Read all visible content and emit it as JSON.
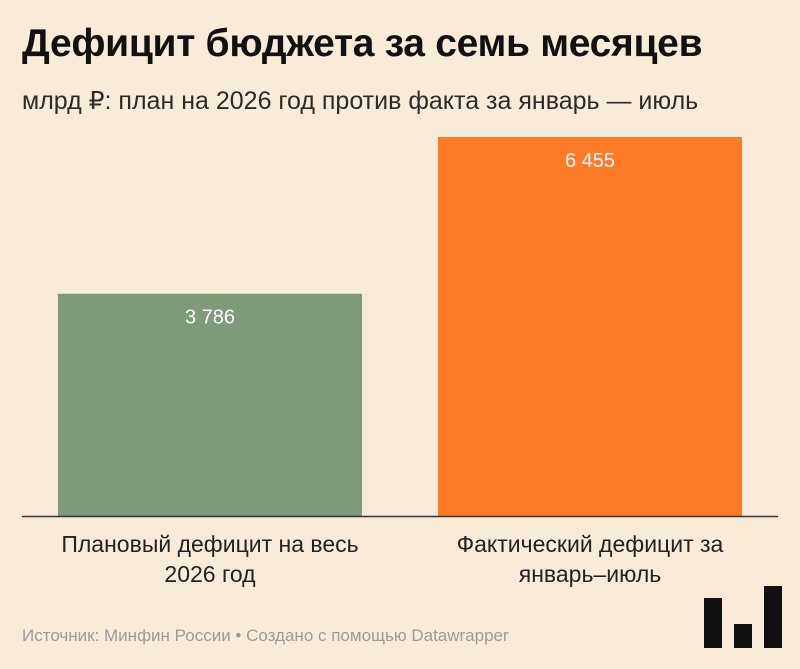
{
  "chart_data": {
    "type": "bar",
    "title": "Дефицит бюджета за семь месяцев",
    "subtitle": "млрд ₽: план на 2026 год против факта за январь — июль",
    "categories": [
      "Плановый дефицит на весь 2026 год",
      "Фактический дефицит за январь–июль"
    ],
    "category_lines": [
      [
        "Плановый дефицит на весь",
        "2026 год"
      ],
      [
        "Фактический дефицит за",
        "январь–июль"
      ]
    ],
    "values": [
      3786,
      6455
    ],
    "value_labels": [
      "3 786",
      "6 455"
    ],
    "colors": [
      "#7f9a79",
      "#ff7a26"
    ],
    "ylim": [
      0,
      6455
    ],
    "grid": false
  },
  "footer": {
    "text": "Источник: Минфин России • Создано с помощью Datawrapper"
  },
  "logo": {
    "icon": "datawrapper-logo-icon"
  }
}
